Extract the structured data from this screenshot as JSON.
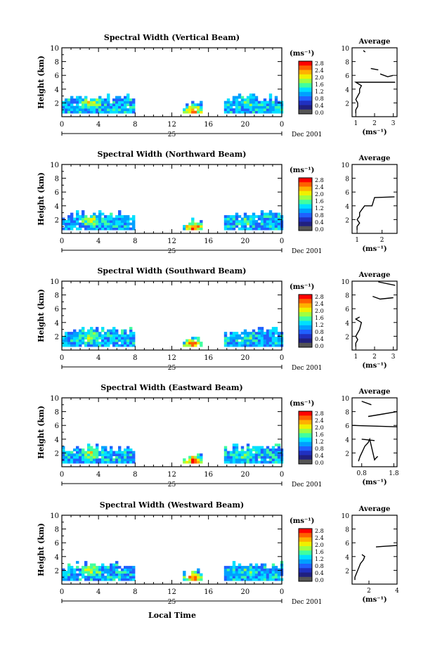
{
  "figure": {
    "xlabel": "Local Time",
    "date_label": "Dec 2001",
    "day_label": "25",
    "average_title": "Average",
    "unit_label": "(ms⁻¹)",
    "ylabel": "Height (km)"
  },
  "colorbar": {
    "ticks": [
      "2.8",
      "2.4",
      "2.0",
      "1.6",
      "1.2",
      "0.8",
      "0.4",
      "0.0"
    ],
    "colors": [
      "#ff0000",
      "#ff6000",
      "#ffb000",
      "#f0f000",
      "#a0ff40",
      "#40ffa0",
      "#00e0ff",
      "#00a0ff",
      "#2060ff",
      "#2030c0",
      "#202080",
      "#555555"
    ]
  },
  "chart_data": [
    {
      "type": "heatmap",
      "title": "Spectral Width (Vertical Beam)",
      "x_ticks": [
        "0",
        "4",
        "8",
        "12",
        "16",
        "20",
        "0"
      ],
      "y_ticks": [
        "2",
        "4",
        "6",
        "8",
        "10"
      ],
      "xlim": [
        0,
        24
      ],
      "ylim": [
        0,
        10
      ],
      "value_range": [
        0.0,
        2.8
      ],
      "data_blocks": [
        {
          "x_start": 0,
          "x_end": 7.7,
          "y_top": 3.0,
          "base_value": 0.9,
          "hotspot": {
            "x": 3.0,
            "y": 2.2,
            "value": 2.0
          }
        },
        {
          "x_start": 13.2,
          "x_end": 15.2,
          "y_top": 2.0,
          "base_value": 0.8,
          "hotspot": {
            "x": 14.2,
            "y": 1.1,
            "value": 2.8
          }
        },
        {
          "x_start": 17.7,
          "x_end": 24,
          "y_top": 3.0,
          "base_value": 0.9,
          "hotspot": {
            "x": 20.0,
            "y": 2.0,
            "value": 1.4
          }
        }
      ],
      "average": {
        "x_ticks": [
          "1",
          "2",
          "3"
        ],
        "xlim": [
          0.8,
          3.2
        ],
        "y_ticks": [
          "2",
          "4",
          "6",
          "8",
          "10"
        ],
        "x": [
          1.0,
          1.0,
          1.1,
          1.1,
          1.0,
          1.1,
          1.2,
          1.2,
          1.3,
          1.0,
          3.1
        ],
        "y": [
          0.5,
          1.0,
          1.5,
          2.0,
          2.5,
          3.0,
          3.5,
          4.0,
          4.5,
          5.0,
          5.0
        ],
        "segments": [
          {
            "x": [
              2.3,
              2.7,
              3.0
            ],
            "y": [
              6.2,
              5.8,
              6.0
            ]
          },
          {
            "x": [
              1.8,
              2.2
            ],
            "y": [
              7.0,
              6.8
            ]
          },
          {
            "x": [
              1.4,
              1.5
            ],
            "y": [
              9.6,
              9.4
            ]
          }
        ]
      }
    },
    {
      "type": "heatmap",
      "title": "Spectral Width (Northward Beam)",
      "x_ticks": [
        "0",
        "4",
        "8",
        "12",
        "16",
        "20",
        "0"
      ],
      "y_ticks": [
        "2",
        "4",
        "6",
        "8",
        "10"
      ],
      "xlim": [
        0,
        24
      ],
      "ylim": [
        0,
        10
      ],
      "value_range": [
        0.0,
        2.8
      ],
      "data_blocks": [
        {
          "x_start": 0,
          "x_end": 7.7,
          "y_top": 3.0,
          "base_value": 0.9,
          "hotspot": {
            "x": 3.0,
            "y": 2.2,
            "value": 2.0
          }
        },
        {
          "x_start": 13.2,
          "x_end": 15.2,
          "y_top": 2.0,
          "base_value": 0.8,
          "hotspot": {
            "x": 14.2,
            "y": 1.1,
            "value": 2.8
          }
        },
        {
          "x_start": 17.7,
          "x_end": 24,
          "y_top": 3.0,
          "base_value": 0.9,
          "hotspot": {
            "x": 20.0,
            "y": 2.0,
            "value": 1.4
          }
        }
      ],
      "average": {
        "x_ticks": [
          "1",
          "2"
        ],
        "xlim": [
          0.8,
          2.6
        ],
        "y_ticks": [
          "2",
          "4",
          "6",
          "8",
          "10"
        ],
        "x": [
          1.0,
          1.0,
          1.1,
          1.0,
          1.1,
          1.1,
          1.2,
          1.3,
          1.6,
          1.7,
          2.5
        ],
        "y": [
          0.5,
          1.0,
          1.5,
          2.0,
          2.5,
          3.0,
          3.5,
          4.0,
          4.0,
          5.2,
          5.3
        ],
        "segments": []
      }
    },
    {
      "type": "heatmap",
      "title": "Spectral Width (Southward Beam)",
      "x_ticks": [
        "0",
        "4",
        "8",
        "12",
        "16",
        "20",
        "0"
      ],
      "y_ticks": [
        "2",
        "4",
        "6",
        "8",
        "10"
      ],
      "xlim": [
        0,
        24
      ],
      "ylim": [
        0,
        10
      ],
      "value_range": [
        0.0,
        2.8
      ],
      "data_blocks": [
        {
          "x_start": 0,
          "x_end": 7.7,
          "y_top": 3.0,
          "base_value": 0.9,
          "hotspot": {
            "x": 3.0,
            "y": 2.2,
            "value": 2.0
          }
        },
        {
          "x_start": 13.2,
          "x_end": 15.2,
          "y_top": 2.0,
          "base_value": 0.8,
          "hotspot": {
            "x": 14.2,
            "y": 1.1,
            "value": 2.8
          }
        },
        {
          "x_start": 17.7,
          "x_end": 24,
          "y_top": 3.0,
          "base_value": 0.9,
          "hotspot": {
            "x": 20.0,
            "y": 2.0,
            "value": 1.4
          }
        }
      ],
      "average": {
        "x_ticks": [
          "1",
          "2",
          "3"
        ],
        "xlim": [
          0.8,
          3.2
        ],
        "y_ticks": [
          "2",
          "4",
          "6",
          "8",
          "10"
        ],
        "x": [
          1.0,
          1.0,
          1.1,
          1.0,
          1.2,
          1.3,
          1.0,
          1.2
        ],
        "y": [
          0.5,
          1.0,
          1.5,
          2.0,
          3.0,
          4.0,
          4.5,
          4.8
        ],
        "segments": [
          {
            "x": [
              1.9,
              2.3,
              3.0
            ],
            "y": [
              7.8,
              7.4,
              7.6
            ]
          },
          {
            "x": [
              2.2,
              3.1
            ],
            "y": [
              9.9,
              9.4
            ]
          }
        ]
      }
    },
    {
      "type": "heatmap",
      "title": "Spectral Width (Eastward Beam)",
      "x_ticks": [
        "0",
        "4",
        "8",
        "12",
        "16",
        "20",
        "0"
      ],
      "y_ticks": [
        "2",
        "4",
        "6",
        "8",
        "10"
      ],
      "xlim": [
        0,
        24
      ],
      "ylim": [
        0,
        10
      ],
      "value_range": [
        0.0,
        2.8
      ],
      "data_blocks": [
        {
          "x_start": 0,
          "x_end": 7.7,
          "y_top": 3.0,
          "base_value": 0.9,
          "hotspot": {
            "x": 3.0,
            "y": 2.2,
            "value": 2.0
          }
        },
        {
          "x_start": 13.2,
          "x_end": 15.2,
          "y_top": 2.0,
          "base_value": 0.8,
          "hotspot": {
            "x": 14.2,
            "y": 1.1,
            "value": 2.8
          }
        },
        {
          "x_start": 17.7,
          "x_end": 24,
          "y_top": 3.0,
          "base_value": 0.9,
          "hotspot": {
            "x": 20.0,
            "y": 2.0,
            "value": 1.4
          }
        }
      ],
      "average": {
        "x_ticks": [
          "0.8",
          "1.8"
        ],
        "xlim": [
          0.5,
          1.9
        ],
        "y_ticks": [
          "2",
          "4",
          "6",
          "8",
          "10"
        ],
        "x": [
          0.7,
          0.75,
          0.8,
          0.85,
          0.9,
          1.0,
          1.05,
          1.2,
          1.25,
          1.3
        ],
        "y": [
          0.8,
          1.5,
          2.0,
          2.5,
          3.0,
          3.5,
          4.0,
          1.0,
          1.3,
          1.5
        ],
        "segments": [
          {
            "x": [
              0.8,
              1.2
            ],
            "y": [
              4.0,
              3.8
            ]
          },
          {
            "x": [
              0.5,
              1.9
            ],
            "y": [
              6.0,
              5.8
            ]
          },
          {
            "x": [
              1.0,
              1.4,
              1.9
            ],
            "y": [
              7.3,
              7.6,
              8.0
            ]
          },
          {
            "x": [
              0.8,
              1.1
            ],
            "y": [
              9.5,
              9.0
            ]
          }
        ]
      }
    },
    {
      "type": "heatmap",
      "title": "Spectral Width (Westward Beam)",
      "x_ticks": [
        "0",
        "4",
        "8",
        "12",
        "16",
        "20",
        "0"
      ],
      "y_ticks": [
        "2",
        "4",
        "6",
        "8",
        "10"
      ],
      "xlim": [
        0,
        24
      ],
      "ylim": [
        0,
        10
      ],
      "value_range": [
        0.0,
        2.8
      ],
      "data_blocks": [
        {
          "x_start": 0,
          "x_end": 7.7,
          "y_top": 3.0,
          "base_value": 0.9,
          "hotspot": {
            "x": 3.0,
            "y": 2.2,
            "value": 2.0
          }
        },
        {
          "x_start": 13.2,
          "x_end": 15.2,
          "y_top": 2.0,
          "base_value": 0.8,
          "hotspot": {
            "x": 14.2,
            "y": 1.1,
            "value": 2.8
          }
        },
        {
          "x_start": 17.7,
          "x_end": 24,
          "y_top": 3.0,
          "base_value": 0.9,
          "hotspot": {
            "x": 20.0,
            "y": 2.0,
            "value": 1.4
          }
        }
      ],
      "average": {
        "x_ticks": [
          "2",
          "4"
        ],
        "xlim": [
          0.8,
          4.0
        ],
        "y_ticks": [
          "2",
          "4",
          "6",
          "8",
          "10"
        ],
        "x": [
          1.0,
          1.0,
          1.1,
          1.2,
          1.3,
          1.4,
          1.6,
          1.7,
          1.5
        ],
        "y": [
          0.6,
          1.0,
          1.5,
          2.0,
          2.5,
          3.0,
          3.5,
          4.0,
          4.3
        ],
        "segments": [
          {
            "x": [
              2.5,
              3.2,
              4.0
            ],
            "y": [
              5.4,
              5.5,
              5.6
            ]
          }
        ]
      }
    }
  ]
}
